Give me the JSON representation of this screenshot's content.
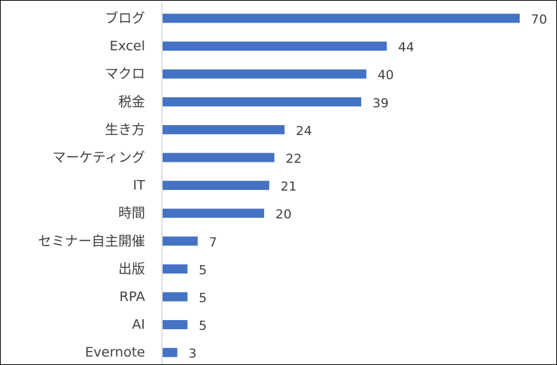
{
  "chart_data": {
    "type": "bar",
    "orientation": "horizontal",
    "categories": [
      "ブログ",
      "Excel",
      "マクロ",
      "税金",
      "生き方",
      "マーケティング",
      "IT",
      "時間",
      "セミナー自主開催",
      "出版",
      "RPA",
      "AI",
      "Evernote"
    ],
    "values": [
      70,
      44,
      40,
      39,
      24,
      22,
      21,
      20,
      7,
      5,
      5,
      5,
      3
    ],
    "data_labels": [
      "70",
      "44",
      "40",
      "39",
      "24",
      "22",
      "21",
      "20",
      "7",
      "5",
      "5",
      "5",
      "3"
    ],
    "title": "",
    "xlabel": "",
    "ylabel": "",
    "xlim": [
      0,
      70
    ],
    "grid": false,
    "legend": "none",
    "bar_color": "#4472C4",
    "axis_color": "#BFBFBF",
    "label_color": "#404040"
  }
}
